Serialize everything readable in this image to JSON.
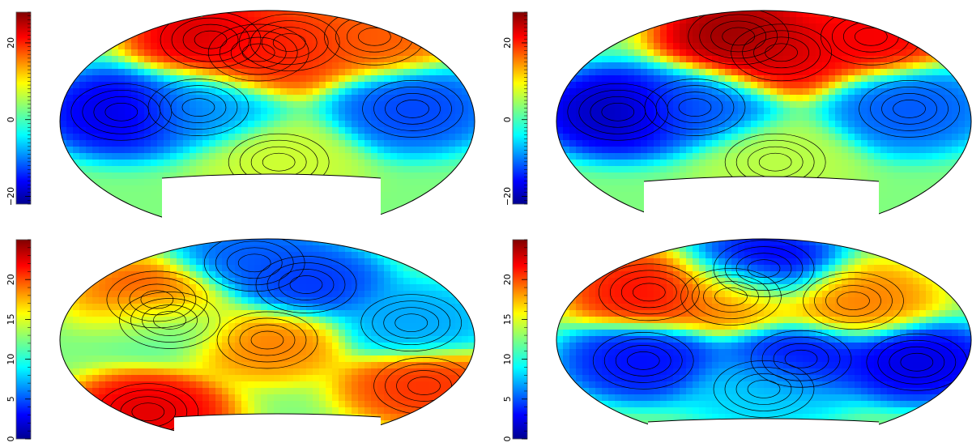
{
  "chart_data": [
    {
      "type": "heatmap",
      "projection": "aitoff-hammer",
      "colormap": "jet",
      "contours": true,
      "colorbar": {
        "position": "left",
        "range": [
          -22,
          28
        ],
        "ticks": [
          -20,
          0,
          20
        ]
      },
      "features": [
        {
          "lon": -120,
          "lat": 6,
          "value": -18
        },
        {
          "lon": -55,
          "lat": 10,
          "value": -9
        },
        {
          "lon": 120,
          "lat": 8,
          "value": -13
        },
        {
          "lon": -80,
          "lat": 60,
          "value": 25
        },
        {
          "lon": -10,
          "lat": 52,
          "value": 21
        },
        {
          "lon": 30,
          "lat": 60,
          "value": 20
        },
        {
          "lon": 10,
          "lat": -30,
          "value": 7
        },
        {
          "lon": 150,
          "lat": 55,
          "value": 18
        }
      ]
    },
    {
      "type": "heatmap",
      "projection": "aitoff-hammer",
      "colormap": "jet",
      "contours": true,
      "colorbar": {
        "position": "left",
        "range": [
          -22,
          28
        ],
        "ticks": [
          -20,
          0,
          20
        ]
      },
      "features": [
        {
          "lon": -120,
          "lat": 6,
          "value": -20
        },
        {
          "lon": -55,
          "lat": 10,
          "value": -12
        },
        {
          "lon": 120,
          "lat": 8,
          "value": -12
        },
        {
          "lon": -40,
          "lat": 65,
          "value": 28
        },
        {
          "lon": 20,
          "lat": 52,
          "value": 24
        },
        {
          "lon": 150,
          "lat": 55,
          "value": 23
        },
        {
          "lon": 10,
          "lat": -30,
          "value": 6
        }
      ]
    },
    {
      "type": "heatmap",
      "projection": "aitoff-hammer",
      "colormap": "jet",
      "contours": true,
      "colorbar": {
        "position": "left",
        "range": [
          0,
          25
        ],
        "ticks": [
          0,
          5,
          10,
          15,
          20
        ]
      },
      "features": [
        {
          "lon": -150,
          "lat": -50,
          "value": 23
        },
        {
          "lon": -100,
          "lat": 30,
          "value": 21
        },
        {
          "lon": -80,
          "lat": 15,
          "value": 11
        },
        {
          "lon": 40,
          "lat": 45,
          "value": 4
        },
        {
          "lon": -20,
          "lat": 65,
          "value": 5
        },
        {
          "lon": 120,
          "lat": 12,
          "value": 7
        },
        {
          "lon": 150,
          "lat": -30,
          "value": 21
        },
        {
          "lon": 0,
          "lat": 0,
          "value": 19
        }
      ]
    },
    {
      "type": "heatmap",
      "projection": "aitoff-hammer",
      "colormap": "jet",
      "contours": true,
      "colorbar": {
        "position": "left",
        "range": [
          0,
          25
        ],
        "ticks": [
          0,
          5,
          10,
          15,
          20
        ]
      },
      "features": [
        {
          "lon": -110,
          "lat": 35,
          "value": 22
        },
        {
          "lon": -30,
          "lat": 35,
          "value": 19
        },
        {
          "lon": 80,
          "lat": 30,
          "value": 19
        },
        {
          "lon": 0,
          "lat": 60,
          "value": 2
        },
        {
          "lon": -100,
          "lat": -15,
          "value": 3
        },
        {
          "lon": 30,
          "lat": -15,
          "value": 3
        },
        {
          "lon": 130,
          "lat": -15,
          "value": 2
        },
        {
          "lon": 0,
          "lat": -40,
          "value": 8
        }
      ]
    }
  ]
}
